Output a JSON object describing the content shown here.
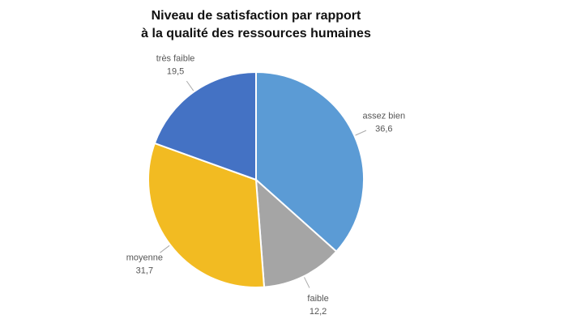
{
  "chart_data": {
    "type": "pie",
    "title": [
      "Niveau de satisfaction par rapport",
      "à la qualité des ressources humaines"
    ],
    "categories": [
      "assez bien",
      "faible",
      "moyenne",
      "très faible"
    ],
    "values": [
      36.6,
      12.2,
      31.7,
      19.5
    ],
    "value_labels": [
      "36,6",
      "12,2",
      "31,7",
      "19,5"
    ],
    "colors": [
      "#5b9bd5",
      "#a5a5a5",
      "#f2bb22",
      "#4472c4"
    ]
  }
}
